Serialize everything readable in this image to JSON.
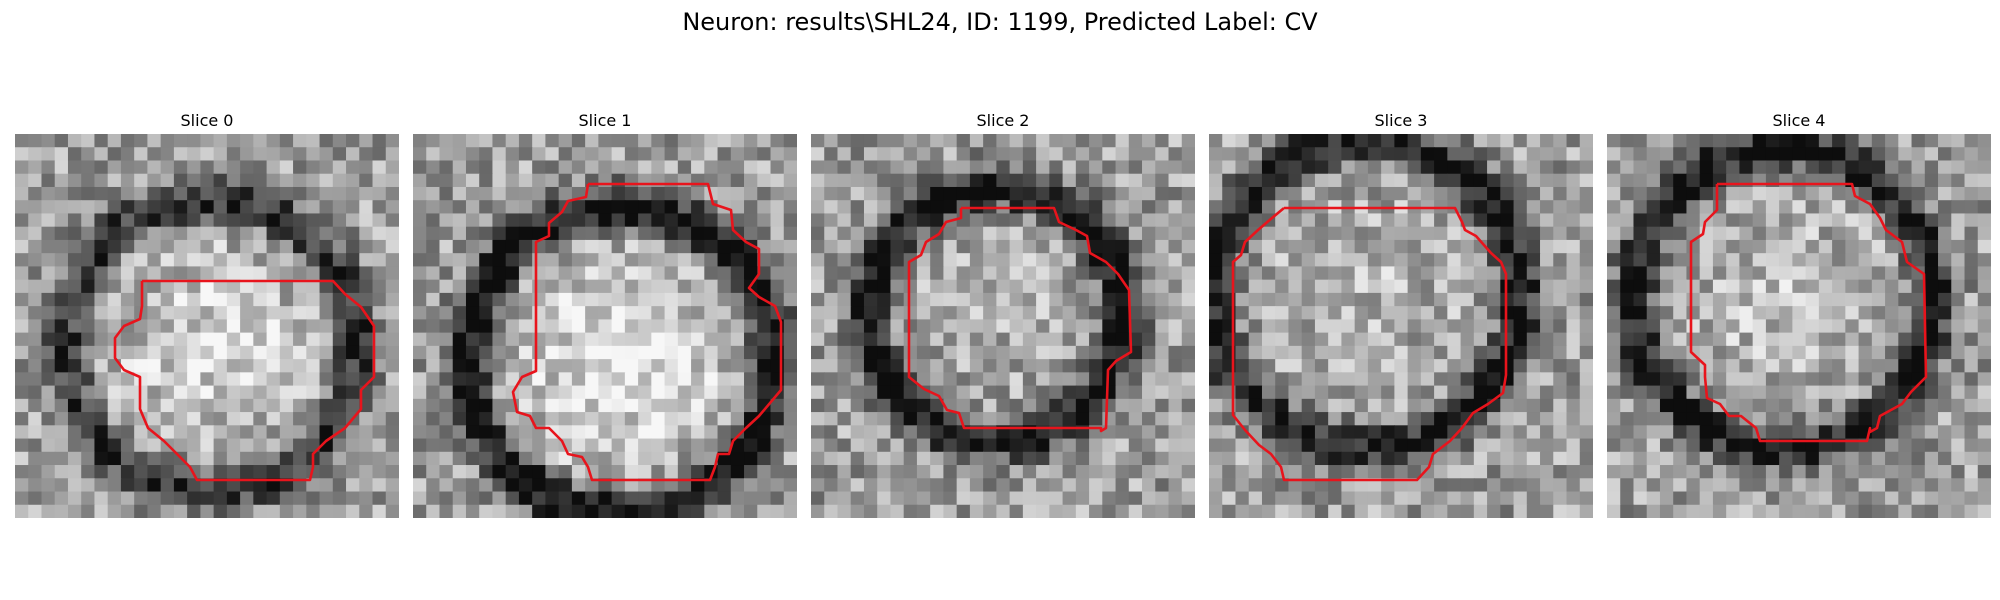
{
  "figure": {
    "title": "Neuron: results\\SHL24, ID: 1199, Predicted Label: CV",
    "contour_color": "#e8141c"
  },
  "slices": [
    {
      "title": "Slice 0",
      "center": [
        0.51,
        0.55
      ],
      "ring_radius": 0.38,
      "ring_darkness": 0.45,
      "core_brightness": 0.25,
      "seed": 11
    },
    {
      "title": "Slice 1",
      "center": [
        0.54,
        0.59
      ],
      "ring_radius": 0.4,
      "ring_darkness": 0.62,
      "core_brightness": 0.35,
      "seed": 23
    },
    {
      "title": "Slice 2",
      "center": [
        0.48,
        0.47
      ],
      "ring_radius": 0.33,
      "ring_darkness": 0.6,
      "core_brightness": 0.08,
      "seed": 37
    },
    {
      "title": "Slice 3",
      "center": [
        0.41,
        0.42
      ],
      "ring_radius": 0.4,
      "ring_darkness": 0.55,
      "core_brightness": 0.1,
      "seed": 41
    },
    {
      "title": "Slice 4",
      "center": [
        0.46,
        0.43
      ],
      "ring_radius": 0.39,
      "ring_darkness": 0.55,
      "core_brightness": 0.14,
      "seed": 53
    }
  ]
}
